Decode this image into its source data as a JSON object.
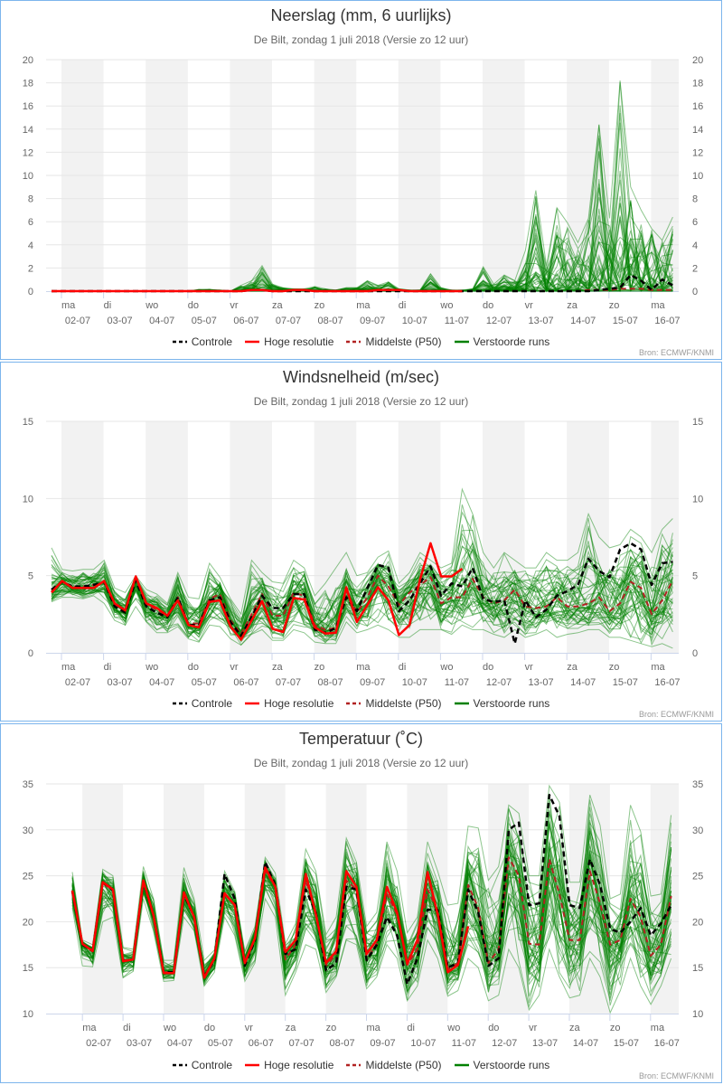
{
  "chart_data": [
    {
      "type": "line",
      "title": "Neerslag (mm, 6 uurlijks)",
      "subtitle": "De Bilt, zondag 1 juli 2018 (Versie zo 12 uur)",
      "source": "Bron: ECMWF/KNMI",
      "ylim": [
        0,
        20
      ],
      "yticks": [
        "0",
        "2",
        "4",
        "6",
        "8",
        "10",
        "12",
        "14",
        "16",
        "18",
        "20"
      ],
      "ytick_values": [
        0,
        2,
        4,
        6,
        8,
        10,
        12,
        14,
        16,
        18,
        20
      ],
      "x_interval": "6 uur, 01-07 18:00 t/m 16-07 12:00",
      "grid": true,
      "legend_placement": "bottom",
      "series": [
        {
          "name": "Controle",
          "color": "#000000",
          "dash": true,
          "values": [
            0,
            0,
            0,
            0,
            0,
            0,
            0,
            0,
            0,
            0,
            0,
            0,
            0,
            0,
            0,
            0,
            0,
            0,
            0,
            0.1,
            0.1,
            0,
            0,
            0,
            0,
            0,
            0,
            0,
            0,
            0,
            0,
            0,
            0,
            0,
            0,
            0,
            0,
            0,
            0,
            0,
            0,
            0,
            0,
            0,
            0,
            0,
            0,
            0,
            0,
            0,
            0,
            0,
            0.1,
            0.2,
            0.3,
            1.4,
            0.9,
            0.1,
            1.0,
            0.5
          ]
        },
        {
          "name": "Hoge resolutie",
          "color": "#ff0000",
          "dash": false,
          "values": [
            0,
            0,
            0,
            0,
            0,
            0,
            0,
            0,
            0,
            0,
            0,
            0,
            0,
            0,
            0,
            0,
            0,
            0,
            0,
            0.1,
            0.1,
            0,
            0,
            0.1,
            0.1,
            0,
            0,
            0,
            0,
            0,
            0,
            0.1,
            0.1,
            0.1,
            0,
            0,
            0,
            0,
            0,
            0
          ]
        },
        {
          "name": "Middelste (P50)",
          "color": "#b22222",
          "dash": true,
          "values": [
            0,
            0,
            0,
            0,
            0,
            0,
            0,
            0,
            0,
            0,
            0,
            0,
            0,
            0,
            0,
            0,
            0,
            0,
            0,
            0.1,
            0.1,
            0,
            0,
            0,
            0,
            0,
            0,
            0,
            0,
            0,
            0,
            0,
            0,
            0,
            0,
            0,
            0,
            0,
            0,
            0,
            0,
            0,
            0,
            0,
            0,
            0,
            0,
            0,
            0,
            0,
            0,
            0.1,
            0.1,
            0.1,
            0.2,
            0.2,
            0.2,
            0.1,
            0.1,
            0.1
          ]
        }
      ],
      "ensemble": {
        "name": "Verstoorde runs",
        "color": "#008000",
        "min": [
          0,
          0,
          0,
          0,
          0,
          0,
          0,
          0,
          0,
          0,
          0,
          0,
          0,
          0,
          0,
          0,
          0,
          0,
          0,
          0,
          0,
          0,
          0,
          0,
          0,
          0,
          0,
          0,
          0,
          0,
          0,
          0,
          0,
          0,
          0,
          0,
          0,
          0,
          0,
          0,
          0,
          0,
          0,
          0,
          0,
          0,
          0,
          0,
          0,
          0,
          0,
          0,
          0,
          0,
          0,
          0,
          0,
          0,
          0,
          0
        ],
        "max": [
          0,
          0,
          0,
          0,
          0,
          0,
          0,
          0,
          0,
          0,
          0,
          0,
          0,
          0,
          0.15,
          0.15,
          0.1,
          0,
          0.5,
          0.9,
          2.2,
          0.6,
          0.3,
          0.2,
          0.2,
          0.4,
          0.2,
          0.1,
          0.3,
          0.3,
          0.9,
          0.5,
          0.8,
          0.2,
          0.1,
          0.1,
          1.5,
          0.3,
          0.1,
          0.1,
          0.2,
          2.1,
          0.6,
          1.4,
          0.9,
          3.5,
          8.7,
          2.2,
          7.2,
          5.9,
          4.2,
          6.3,
          14.4,
          6.3,
          18.2,
          9.0,
          7.0,
          5.4,
          4.4,
          6.4
        ]
      }
    },
    {
      "type": "line",
      "title": "Windsnelheid (m/sec)",
      "subtitle": "De Bilt, zondag 1 juli 2018 (Versie zo 12 uur)",
      "source": "Bron: ECMWF/KNMI",
      "ylim": [
        0,
        15
      ],
      "yticks": [
        "0",
        "5",
        "10",
        "15"
      ],
      "ytick_values": [
        0,
        5,
        10,
        15
      ],
      "grid": true,
      "legend_placement": "bottom",
      "series": [
        {
          "name": "Controle",
          "color": "#000000",
          "dash": true,
          "values": [
            4.1,
            4.6,
            4.3,
            4.3,
            4.4,
            4.6,
            3.0,
            2.6,
            4.7,
            3.0,
            2.6,
            2.3,
            3.6,
            1.8,
            1.8,
            3.4,
            3.6,
            2.0,
            1.1,
            2.3,
            3.7,
            2.9,
            2.9,
            3.8,
            3.8,
            1.5,
            1.3,
            1.6,
            3.6,
            2.7,
            4.2,
            5.7,
            5.5,
            2.7,
            3.4,
            4.5,
            5.6,
            3.7,
            4.5,
            4.3,
            5.5,
            3.5,
            3.3,
            3.4,
            0.6,
            3.4,
            2.3,
            2.8,
            3.7,
            4.0,
            4.4,
            6.1,
            5.3,
            4.9,
            6.7,
            7.1,
            6.7,
            4.4,
            5.8,
            5.9
          ]
        },
        {
          "name": "Hoge resolutie",
          "color": "#ff0000",
          "dash": false,
          "values": [
            3.9,
            4.65,
            4.2,
            4.2,
            4.2,
            4.65,
            3.2,
            2.75,
            4.95,
            3.2,
            2.9,
            2.4,
            3.4,
            1.8,
            1.65,
            3.3,
            3.4,
            1.7,
            0.85,
            2.1,
            3.35,
            1.55,
            1.35,
            3.55,
            3.45,
            1.65,
            1.25,
            1.3,
            4.25,
            2.0,
            3.1,
            4.25,
            3.4,
            1.15,
            1.8,
            4.75,
            7.1,
            4.95,
            4.95,
            5.45
          ]
        },
        {
          "name": "Middelste (P50)",
          "color": "#b22222",
          "dash": true,
          "values": [
            4.0,
            4.6,
            4.3,
            4.3,
            4.4,
            4.6,
            3.1,
            2.7,
            4.8,
            3.1,
            2.8,
            2.4,
            3.6,
            1.9,
            1.9,
            3.5,
            3.8,
            2.1,
            1.2,
            2.5,
            3.8,
            2.4,
            2.4,
            3.9,
            3.7,
            1.8,
            1.5,
            1.6,
            4.0,
            2.6,
            3.6,
            5.0,
            4.3,
            3.1,
            3.9,
            4.4,
            4.9,
            3.2,
            3.6,
            3.6,
            4.8,
            3.6,
            3.2,
            3.4,
            4.1,
            3.0,
            2.9,
            3.0,
            3.6,
            3.0,
            3.0,
            3.2,
            3.6,
            2.7,
            3.2,
            4.6,
            4.2,
            2.5,
            3.4,
            4.7
          ]
        }
      ],
      "ensemble": {
        "name": "Verstoorde runs",
        "color": "#008000",
        "min": [
          3.3,
          3.6,
          3.6,
          3.5,
          3.7,
          3.2,
          2.1,
          1.8,
          3.0,
          2.0,
          1.3,
          1.3,
          1.7,
          0.9,
          0.7,
          1.8,
          1.7,
          0.9,
          0.5,
          1.2,
          1.5,
          0.8,
          0.8,
          1.5,
          1.3,
          0.7,
          0.6,
          0.6,
          2.0,
          1.3,
          1.5,
          1.8,
          1.5,
          1.0,
          1.0,
          1.5,
          1.5,
          1.5,
          1.2,
          1.8,
          1.5,
          1.5,
          1.2,
          1.0,
          1.5,
          1.0,
          1.2,
          1.5,
          1.0,
          1.2,
          1.3,
          1.5,
          1.5,
          1.0,
          1.0,
          0.8,
          0.6,
          0.4,
          0.6,
          0.3
        ],
        "max": [
          6.8,
          5.4,
          5.3,
          5.4,
          5.4,
          6.0,
          4.2,
          3.9,
          5.0,
          4.1,
          3.8,
          3.2,
          5.2,
          3.6,
          3.5,
          5.8,
          4.9,
          3.5,
          2.5,
          6.0,
          5.2,
          4.6,
          4.5,
          6.0,
          5.5,
          3.7,
          4.5,
          5.5,
          6.5,
          5.0,
          5.2,
          6.2,
          6.6,
          4.5,
          5.2,
          6.5,
          6.0,
          5.5,
          5.8,
          10.6,
          9.0,
          6.5,
          5.5,
          6.5,
          6.0,
          5.5,
          5.5,
          6.5,
          6.0,
          6.0,
          6.5,
          9.0,
          7.5,
          6.8,
          7.0,
          8.0,
          7.5,
          6.5,
          8.0,
          8.7
        ]
      }
    },
    {
      "type": "line",
      "title": "Temperatuur (˚C)",
      "subtitle": "De Bilt, zondag 1 juli 2018 (Versie zo 12 uur)",
      "source": "Bron: ECMWF/KNMI",
      "ylim": [
        10,
        35
      ],
      "yticks": [
        "10",
        "15",
        "20",
        "25",
        "30",
        "35"
      ],
      "ytick_values": [
        10,
        15,
        20,
        25,
        30,
        35
      ],
      "grid": true,
      "legend_placement": "bottom",
      "series": [
        {
          "name": "Controle",
          "color": "#000000",
          "dash": true,
          "values": [
            23.3,
            17.5,
            16.8,
            24.3,
            23.4,
            15.7,
            15.9,
            24.4,
            20.7,
            14.5,
            14.5,
            23.0,
            20.5,
            14.0,
            15.8,
            25.2,
            22.5,
            15.2,
            18.0,
            26.5,
            24.0,
            16.5,
            17.0,
            23.5,
            21.0,
            14.7,
            15.5,
            23.8,
            23.5,
            15.8,
            17.5,
            20.5,
            18.5,
            13.2,
            16.0,
            21.3,
            21.3,
            15.0,
            15.5,
            23.5,
            21.0,
            15.2,
            16.0,
            30.0,
            30.8,
            21.8,
            22.0,
            33.8,
            31.5,
            21.8,
            21.5,
            26.8,
            24.0,
            19.2,
            18.8,
            20.0,
            21.5,
            18.5,
            19.8,
            21.8
          ]
        },
        {
          "name": "Hoge resolutie",
          "color": "#ff0000",
          "dash": false,
          "values": [
            23.4,
            17.6,
            16.8,
            24.3,
            23.5,
            15.7,
            15.9,
            24.5,
            20.7,
            14.4,
            14.4,
            23.2,
            20.5,
            13.9,
            16.0,
            23.1,
            21.8,
            15.5,
            18.2,
            25.9,
            23.8,
            16.7,
            18.0,
            25.2,
            20.8,
            15.5,
            16.8,
            25.5,
            23.8,
            16.5,
            18.0,
            23.8,
            21.0,
            15.4,
            18.0,
            25.4,
            20.8,
            14.5,
            15.3,
            19.5
          ]
        },
        {
          "name": "Middelste (P50)",
          "color": "#b22222",
          "dash": true,
          "values": [
            23.3,
            17.6,
            16.8,
            24.2,
            23.4,
            15.8,
            15.9,
            24.3,
            20.7,
            14.5,
            14.5,
            23.0,
            20.5,
            14.0,
            16.0,
            23.0,
            21.8,
            15.6,
            18.2,
            25.5,
            23.8,
            15.9,
            17.5,
            24.5,
            21.0,
            15.2,
            16.5,
            24.5,
            23.5,
            16.0,
            17.5,
            23.0,
            20.8,
            15.3,
            17.0,
            23.5,
            21.2,
            14.8,
            15.5,
            24.0,
            21.5,
            15.5,
            17.0,
            27.0,
            25.0,
            17.6,
            17.5,
            26.8,
            23.0,
            18.0,
            18.0,
            25.5,
            22.0,
            17.5,
            18.0,
            22.5,
            20.5,
            16.3,
            17.5,
            22.8
          ]
        }
      ],
      "ensemble": {
        "name": "Verstoorde runs",
        "color": "#008000",
        "min": [
          21.5,
          15.2,
          15.1,
          20,
          20.5,
          13.9,
          14.6,
          22.5,
          19,
          13.5,
          13.6,
          20.5,
          19,
          13.0,
          14.5,
          20.5,
          18.5,
          13.5,
          15.5,
          22.5,
          20.5,
          12,
          14.5,
          17.5,
          17,
          12.3,
          14,
          18,
          17.5,
          12.7,
          14,
          17.5,
          16,
          11.4,
          13,
          18,
          16,
          11.9,
          12.5,
          16,
          15,
          11.4,
          12,
          17,
          15,
          10.4,
          12,
          17,
          14,
          11.7,
          12,
          16,
          14,
          10.1,
          12.5,
          16,
          13,
          11,
          13,
          16
        ],
        "max": [
          25.4,
          18,
          17.5,
          25.7,
          25,
          17.2,
          17,
          26,
          22.5,
          15.8,
          15.8,
          25.9,
          22.5,
          15.8,
          16.9,
          25.5,
          23.3,
          16.8,
          19.5,
          27,
          25.3,
          17.6,
          19.8,
          27.9,
          25.5,
          18.6,
          20.5,
          29.1,
          26.5,
          19.5,
          21,
          28.7,
          25.5,
          18.8,
          20.5,
          28.7,
          25.5,
          21.8,
          22,
          30.4,
          30.2,
          24.5,
          26,
          32.7,
          31.8,
          25,
          25,
          34.8,
          33,
          24.3,
          24.3,
          33.8,
          30.5,
          22.5,
          23,
          32.7,
          29.8,
          22.8,
          23,
          31.6
        ]
      }
    }
  ],
  "x_axis": {
    "days": [
      "ma",
      "di",
      "wo",
      "do",
      "vr",
      "za",
      "zo",
      "ma",
      "di",
      "wo",
      "do",
      "vr",
      "za",
      "zo",
      "ma"
    ],
    "dates": [
      "02-07",
      "03-07",
      "04-07",
      "05-07",
      "06-07",
      "07-07",
      "08-07",
      "09-07",
      "10-07",
      "11-07",
      "12-07",
      "13-07",
      "14-07",
      "15-07",
      "16-07"
    ]
  },
  "legend": [
    "Controle",
    "Hoge resolutie",
    "Middelste (P50)",
    "Verstoorde runs"
  ],
  "colors": {
    "panel_border": "#7cb5ec",
    "weekend_band": "#f2f2f2",
    "grid": "#e6e6e6",
    "axis": "#ccd6eb"
  }
}
